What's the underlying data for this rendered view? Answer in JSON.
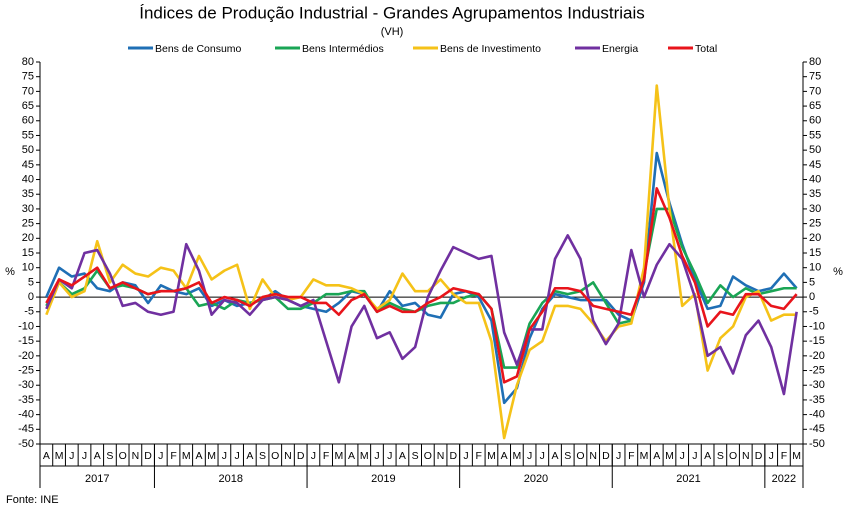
{
  "chart_data": {
    "type": "line",
    "title": "Índices de Produção Industrial - Grandes Agrupamentos Industriais",
    "subtitle": "(VH)",
    "y_label": "%",
    "y2_label": "%",
    "source": "Fonte: INE",
    "categories": [
      "A",
      "M",
      "J",
      "J",
      "A",
      "S",
      "O",
      "N",
      "D",
      "J",
      "F",
      "M",
      "A",
      "M",
      "J",
      "J",
      "A",
      "S",
      "O",
      "N",
      "D",
      "J",
      "F",
      "M",
      "A",
      "M",
      "J",
      "J",
      "A",
      "S",
      "O",
      "N",
      "D",
      "J",
      "F",
      "M",
      "A",
      "M",
      "J",
      "J",
      "A",
      "S",
      "O",
      "N",
      "D",
      "J",
      "F",
      "M",
      "A",
      "M",
      "J",
      "J",
      "A",
      "S",
      "O",
      "N",
      "D",
      "J",
      "F",
      "M"
    ],
    "x_groups": [
      {
        "label": "2017",
        "size": 9
      },
      {
        "label": "2018",
        "size": 12
      },
      {
        "label": "2019",
        "size": 12
      },
      {
        "label": "2020",
        "size": 12
      },
      {
        "label": "2021",
        "size": 12
      },
      {
        "label": "2022",
        "size": 3
      }
    ],
    "ylim": [
      -50,
      80
    ],
    "yticks": [
      -50,
      -45,
      -40,
      -35,
      -30,
      -25,
      -20,
      -15,
      -10,
      -5,
      0,
      5,
      10,
      15,
      20,
      25,
      30,
      35,
      40,
      45,
      50,
      55,
      60,
      65,
      70,
      75,
      80
    ],
    "y2lim": [
      -50,
      80
    ],
    "y2ticks": [
      -50,
      -45,
      -40,
      -35,
      -30,
      -25,
      -20,
      -15,
      -10,
      -5,
      0,
      5,
      10,
      15,
      20,
      25,
      30,
      35,
      40,
      45,
      50,
      55,
      60,
      65,
      70,
      75,
      80
    ],
    "grid": false,
    "legend": "top",
    "series": [
      {
        "name": "Bens de Consumo",
        "color": "#1f6fb5",
        "values": [
          0,
          10,
          7,
          8,
          3,
          2,
          5,
          4,
          -2,
          4,
          2,
          1,
          3,
          -3,
          -1,
          -3,
          -2,
          -1,
          2,
          -1,
          -3,
          -4,
          -5,
          -2,
          2,
          1,
          -5,
          2,
          -3,
          -2,
          -6,
          -7,
          1,
          2,
          0,
          -8,
          -36,
          -31,
          -14,
          -4,
          1,
          0,
          -1,
          -1,
          -1,
          -6,
          -8,
          5,
          49,
          32,
          18,
          6,
          -4,
          -3,
          7,
          4,
          2,
          3,
          8,
          3
        ]
      },
      {
        "name": "Bens Intermédios",
        "color": "#1aa555",
        "values": [
          -3,
          5,
          1,
          3,
          9,
          3,
          4,
          3,
          1,
          2,
          2,
          3,
          -3,
          -2,
          -4,
          -1,
          -2,
          -1,
          0,
          -4,
          -4,
          -2,
          1,
          1,
          2,
          2,
          -5,
          -2,
          -4,
          -5,
          -3,
          -2,
          -2,
          0,
          1,
          -4,
          -24,
          -24,
          -9,
          -2,
          2,
          1,
          2,
          5,
          -2,
          -9,
          -8,
          8,
          30,
          30,
          17,
          8,
          -2,
          4,
          0,
          3,
          1,
          2,
          3,
          3
        ]
      },
      {
        "name": "Bens de Investimento",
        "color": "#f5c218",
        "values": [
          -6,
          5,
          0,
          2,
          19,
          5,
          11,
          8,
          7,
          10,
          9,
          3,
          14,
          6,
          9,
          11,
          -4,
          6,
          0,
          -1,
          0,
          6,
          4,
          4,
          3,
          1,
          -4,
          -1,
          8,
          2,
          2,
          6,
          1,
          -2,
          -2,
          -15,
          -48,
          -30,
          -18,
          -15,
          -3,
          -3,
          -4,
          -9,
          -15,
          -10,
          -9,
          10,
          72,
          30,
          -3,
          1,
          -25,
          -14,
          -10,
          0,
          2,
          -8,
          -6,
          -6
        ]
      },
      {
        "name": "Energia",
        "color": "#7030a0",
        "values": [
          -4,
          6,
          3,
          15,
          16,
          8,
          -3,
          -2,
          -5,
          -6,
          -5,
          18,
          9,
          -6,
          -1,
          -2,
          -6,
          -1,
          0,
          -1,
          -3,
          -1,
          -15,
          -29,
          -10,
          -3,
          -14,
          -12,
          -21,
          -17,
          0,
          9,
          17,
          15,
          13,
          14,
          -12,
          -23,
          -11,
          -11,
          13,
          21,
          13,
          -8,
          -16,
          -9,
          16,
          0,
          11,
          18,
          13,
          0,
          -20,
          -17,
          -26,
          -13,
          -8,
          -17,
          -33,
          -5
        ]
      },
      {
        "name": "Total",
        "color": "#e8141b",
        "values": [
          -2,
          6,
          4,
          7,
          10,
          3,
          5,
          3,
          1,
          2,
          2,
          3,
          5,
          -2,
          0,
          -1,
          -3,
          0,
          1,
          0,
          0,
          -2,
          -2,
          -6,
          -1,
          1,
          -5,
          -3,
          -5,
          -5,
          -2,
          0,
          3,
          2,
          1,
          -4,
          -29,
          -27,
          -11,
          -5,
          3,
          3,
          2,
          -3,
          -4,
          -5,
          -6,
          6,
          37,
          27,
          14,
          5,
          -10,
          -5,
          -6,
          1,
          1,
          -3,
          -4,
          1
        ]
      }
    ]
  }
}
